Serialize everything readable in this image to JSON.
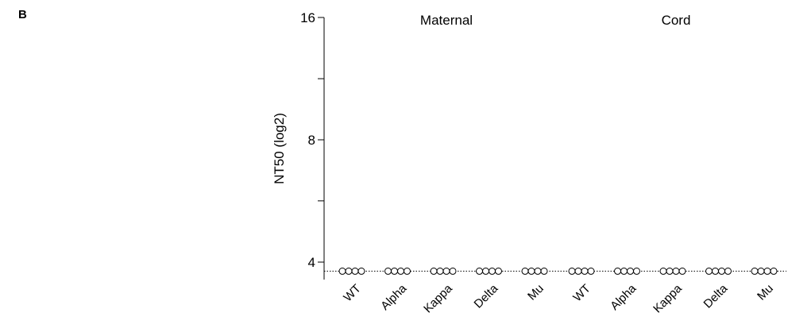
{
  "panel_label": "B",
  "chart_data": {
    "type": "scatter",
    "ylabel": "NT50 (log2)",
    "yscale": "log2",
    "ylim": [
      3.8,
      16
    ],
    "yticks": [
      4,
      5.66,
      8,
      11.31,
      16
    ],
    "ytick_labels": [
      "4",
      "",
      "8",
      "",
      "16"
    ],
    "reference_line": {
      "value": 3.8,
      "style": "dotted"
    },
    "groups": [
      {
        "label": "Maternal",
        "categories": [
          "WT",
          "Alpha",
          "Kappa",
          "Delta",
          "Mu"
        ]
      },
      {
        "label": "Cord",
        "categories": [
          "WT",
          "Alpha",
          "Kappa",
          "Delta",
          "Mu"
        ]
      }
    ],
    "series": [
      {
        "group": "Maternal",
        "category": "WT",
        "values": [
          3.8,
          3.8,
          3.8,
          3.8
        ]
      },
      {
        "group": "Maternal",
        "category": "Alpha",
        "values": [
          3.8,
          3.8,
          3.8,
          3.8
        ]
      },
      {
        "group": "Maternal",
        "category": "Kappa",
        "values": [
          3.8,
          3.8,
          3.8,
          3.8
        ]
      },
      {
        "group": "Maternal",
        "category": "Delta",
        "values": [
          3.8,
          3.8,
          3.8,
          3.8
        ]
      },
      {
        "group": "Maternal",
        "category": "Mu",
        "values": [
          3.8,
          3.8,
          3.8,
          3.8
        ]
      },
      {
        "group": "Cord",
        "category": "WT",
        "values": [
          3.8,
          3.8,
          3.8,
          3.8
        ]
      },
      {
        "group": "Cord",
        "category": "Alpha",
        "values": [
          3.8,
          3.8,
          3.8,
          3.8
        ]
      },
      {
        "group": "Cord",
        "category": "Kappa",
        "values": [
          3.8,
          3.8,
          3.8,
          3.8
        ]
      },
      {
        "group": "Cord",
        "category": "Delta",
        "values": [
          3.8,
          3.8,
          3.8,
          3.8
        ]
      },
      {
        "group": "Cord",
        "category": "Mu",
        "values": [
          3.8,
          3.8,
          3.8,
          3.8
        ]
      }
    ]
  }
}
